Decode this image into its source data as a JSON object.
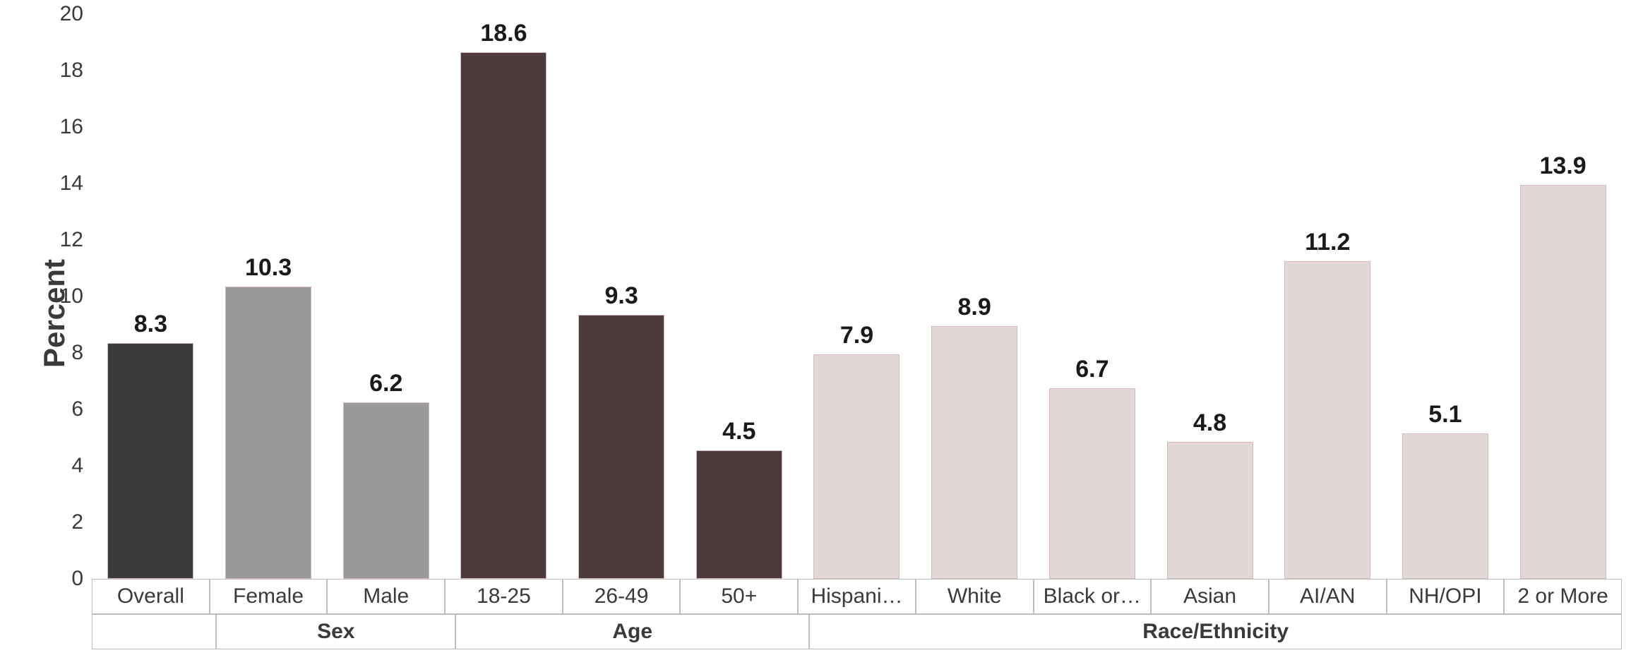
{
  "chart": {
    "type": "bar",
    "background_color": "#ffffff",
    "font_family": "Lucida Sans, Lucida Grande, Verdana, sans-serif",
    "y_axis": {
      "title": "Percent",
      "title_fontsize": 42,
      "title_color": "#3a3a3a",
      "min": 0,
      "max": 20,
      "tick_step": 2,
      "ticks": [
        0,
        2,
        4,
        6,
        8,
        10,
        12,
        14,
        16,
        18,
        20
      ],
      "tick_fontsize": 30,
      "tick_color": "#3a3a3a"
    },
    "bar_outline_color": "#d9b8b8",
    "bar_outline_width": 1,
    "bar_width_ratio": 0.72,
    "value_label_fontsize": 34,
    "value_label_color": "#1a1a1a",
    "group_colors": {
      "overall": "#3b3b3b",
      "sex": "#9a9a9a",
      "age": "#4c3a3d",
      "race": "#e2d8d8"
    },
    "bars": [
      {
        "label": "Overall",
        "value": 8.3,
        "group": "overall"
      },
      {
        "label": "Female",
        "value": 10.3,
        "group": "sex"
      },
      {
        "label": "Male",
        "value": 6.2,
        "group": "sex"
      },
      {
        "label": "18-25",
        "value": 18.6,
        "group": "age"
      },
      {
        "label": "26-49",
        "value": 9.3,
        "group": "age"
      },
      {
        "label": "50+",
        "value": 4.5,
        "group": "age"
      },
      {
        "label": "Hispani…",
        "value": 7.9,
        "group": "race"
      },
      {
        "label": "White",
        "value": 8.9,
        "group": "race"
      },
      {
        "label": "Black or…",
        "value": 6.7,
        "group": "race"
      },
      {
        "label": "Asian",
        "value": 4.8,
        "group": "race"
      },
      {
        "label": "AI/AN",
        "value": 11.2,
        "group": "race"
      },
      {
        "label": "NH/OPI",
        "value": 5.1,
        "group": "race"
      },
      {
        "label": "2 or More",
        "value": 13.9,
        "group": "race"
      }
    ],
    "x_groups": [
      {
        "label": "",
        "span": 1
      },
      {
        "label": "Sex",
        "span": 2
      },
      {
        "label": "Age",
        "span": 3
      },
      {
        "label": "Race/Ethnicity",
        "span": 7
      }
    ],
    "x_axis": {
      "cell_fontsize": 30,
      "cell_color": "#3a3a3a",
      "border_color": "#bdbdbd",
      "group_fontweight": 700
    }
  }
}
